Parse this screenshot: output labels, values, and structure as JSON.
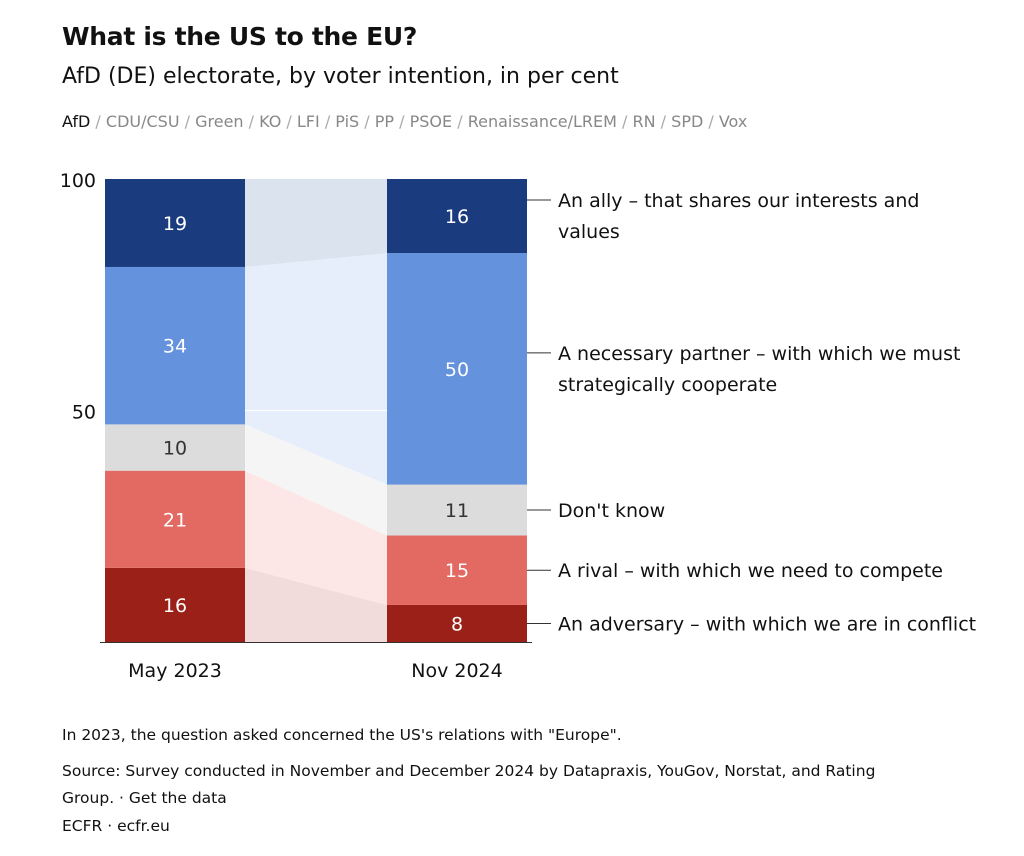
{
  "header": {
    "title": "What is the US to the EU?",
    "subtitle": "AfD (DE) electorate, by voter intention, in per cent"
  },
  "party_tabs": {
    "separator": " / ",
    "items": [
      "AfD",
      "CDU/CSU",
      "Green",
      "KO",
      "LFI",
      "PiS",
      "PP",
      "PSOE",
      "Renaissance/LREM",
      "RN",
      "SPD",
      "Vox"
    ],
    "active": "AfD"
  },
  "chart_data": {
    "type": "bar",
    "stacked": true,
    "categories": [
      "May 2023",
      "Nov 2024"
    ],
    "ylim": [
      0,
      100
    ],
    "yticks": [
      "100",
      "50"
    ],
    "ytick_values": [
      100,
      50
    ],
    "series": [
      {
        "name": "An adversary – with which we are in conflict",
        "values": [
          16,
          8
        ],
        "color": "#9b2017",
        "label_color": "#ffffff",
        "band_color": "#f1dcdb"
      },
      {
        "name": "A rival – with which we need to compete",
        "values": [
          21,
          15
        ],
        "color": "#e26a63",
        "label_color": "#ffffff",
        "band_color": "#fde7e6"
      },
      {
        "name": "Don't know",
        "values": [
          10,
          11
        ],
        "color": "#dcdcdc",
        "label_color": "#333333",
        "band_color": "#f5f5f5"
      },
      {
        "name": "A necessary partner – with which we must strategically cooperate",
        "values": [
          34,
          50
        ],
        "color": "#6592dc",
        "label_color": "#ffffff",
        "band_color": "#e6edfb"
      },
      {
        "name": "An ally – that shares our interests and values",
        "values": [
          19,
          16
        ],
        "color": "#1a3c7e",
        "label_color": "#ffffff",
        "band_color": "#dbe3ee"
      }
    ],
    "legend_lines": [
      [
        "An adversary – with which we are in conflict"
      ],
      [
        "A rival – with which we need to compete"
      ],
      [
        "Don't know"
      ],
      [
        "A necessary partner – with which we must",
        "strategically cooperate"
      ],
      [
        "An ally – that shares our interests and",
        "values"
      ]
    ]
  },
  "footer": {
    "note": "In 2023, the question asked concerned the US's relations with \"Europe\".",
    "source_line1": "Source: Survey conducted in November and December 2024 by Datapraxis, YouGov, Norstat, and Rating",
    "source_line2": "Group. · Get the data",
    "credit": "ECFR · ecfr.eu"
  }
}
